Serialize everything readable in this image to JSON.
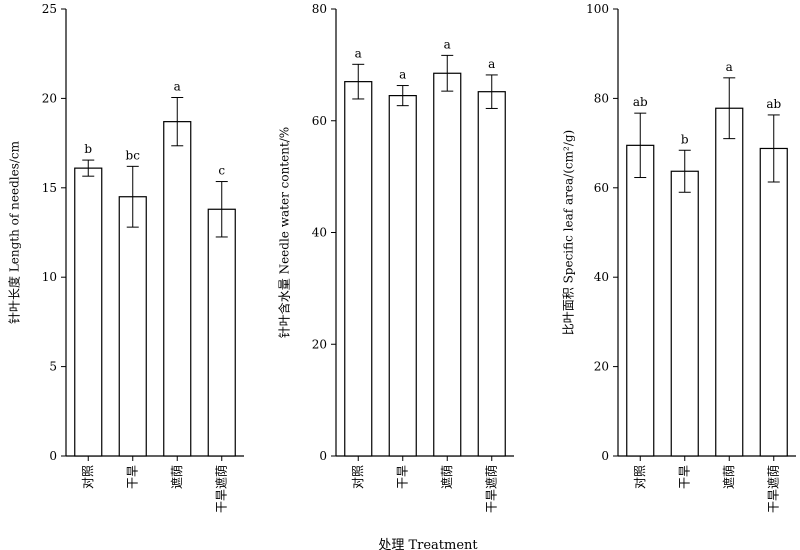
{
  "xlabel": "处理 Treatment",
  "chart_data": [
    {
      "type": "bar",
      "ylabel": "针叶长度 Length of needles/cm",
      "ylim": [
        0,
        25
      ],
      "yticks": [
        0,
        5,
        10,
        15,
        20,
        25
      ],
      "categories": [
        "对照",
        "干旱",
        "遮荫",
        "干旱遮荫"
      ],
      "values": [
        16.1,
        14.5,
        18.7,
        13.8
      ],
      "errors": [
        0.45,
        1.7,
        1.35,
        1.55
      ],
      "significance": [
        "b",
        "bc",
        "a",
        "c"
      ]
    },
    {
      "type": "bar",
      "ylabel": "针叶含水量 Needle water content/%",
      "ylim": [
        0,
        80
      ],
      "yticks": [
        0,
        20,
        40,
        60,
        80
      ],
      "categories": [
        "对照",
        "干旱",
        "遮荫",
        "干旱遮荫"
      ],
      "values": [
        67.0,
        64.5,
        68.5,
        65.2
      ],
      "errors": [
        3.1,
        1.8,
        3.2,
        3.0
      ],
      "significance": [
        "a",
        "a",
        "a",
        "a"
      ]
    },
    {
      "type": "bar",
      "ylabel": "比叶面积 Specific leaf area/(cm²/g)",
      "ylim": [
        0,
        100
      ],
      "yticks": [
        0,
        20,
        40,
        60,
        80,
        100
      ],
      "categories": [
        "对照",
        "干旱",
        "遮荫",
        "干旱遮荫"
      ],
      "values": [
        69.5,
        63.7,
        77.8,
        68.8
      ],
      "errors": [
        7.2,
        4.7,
        6.8,
        7.5
      ],
      "significance": [
        "ab",
        "b",
        "a",
        "ab"
      ]
    }
  ]
}
